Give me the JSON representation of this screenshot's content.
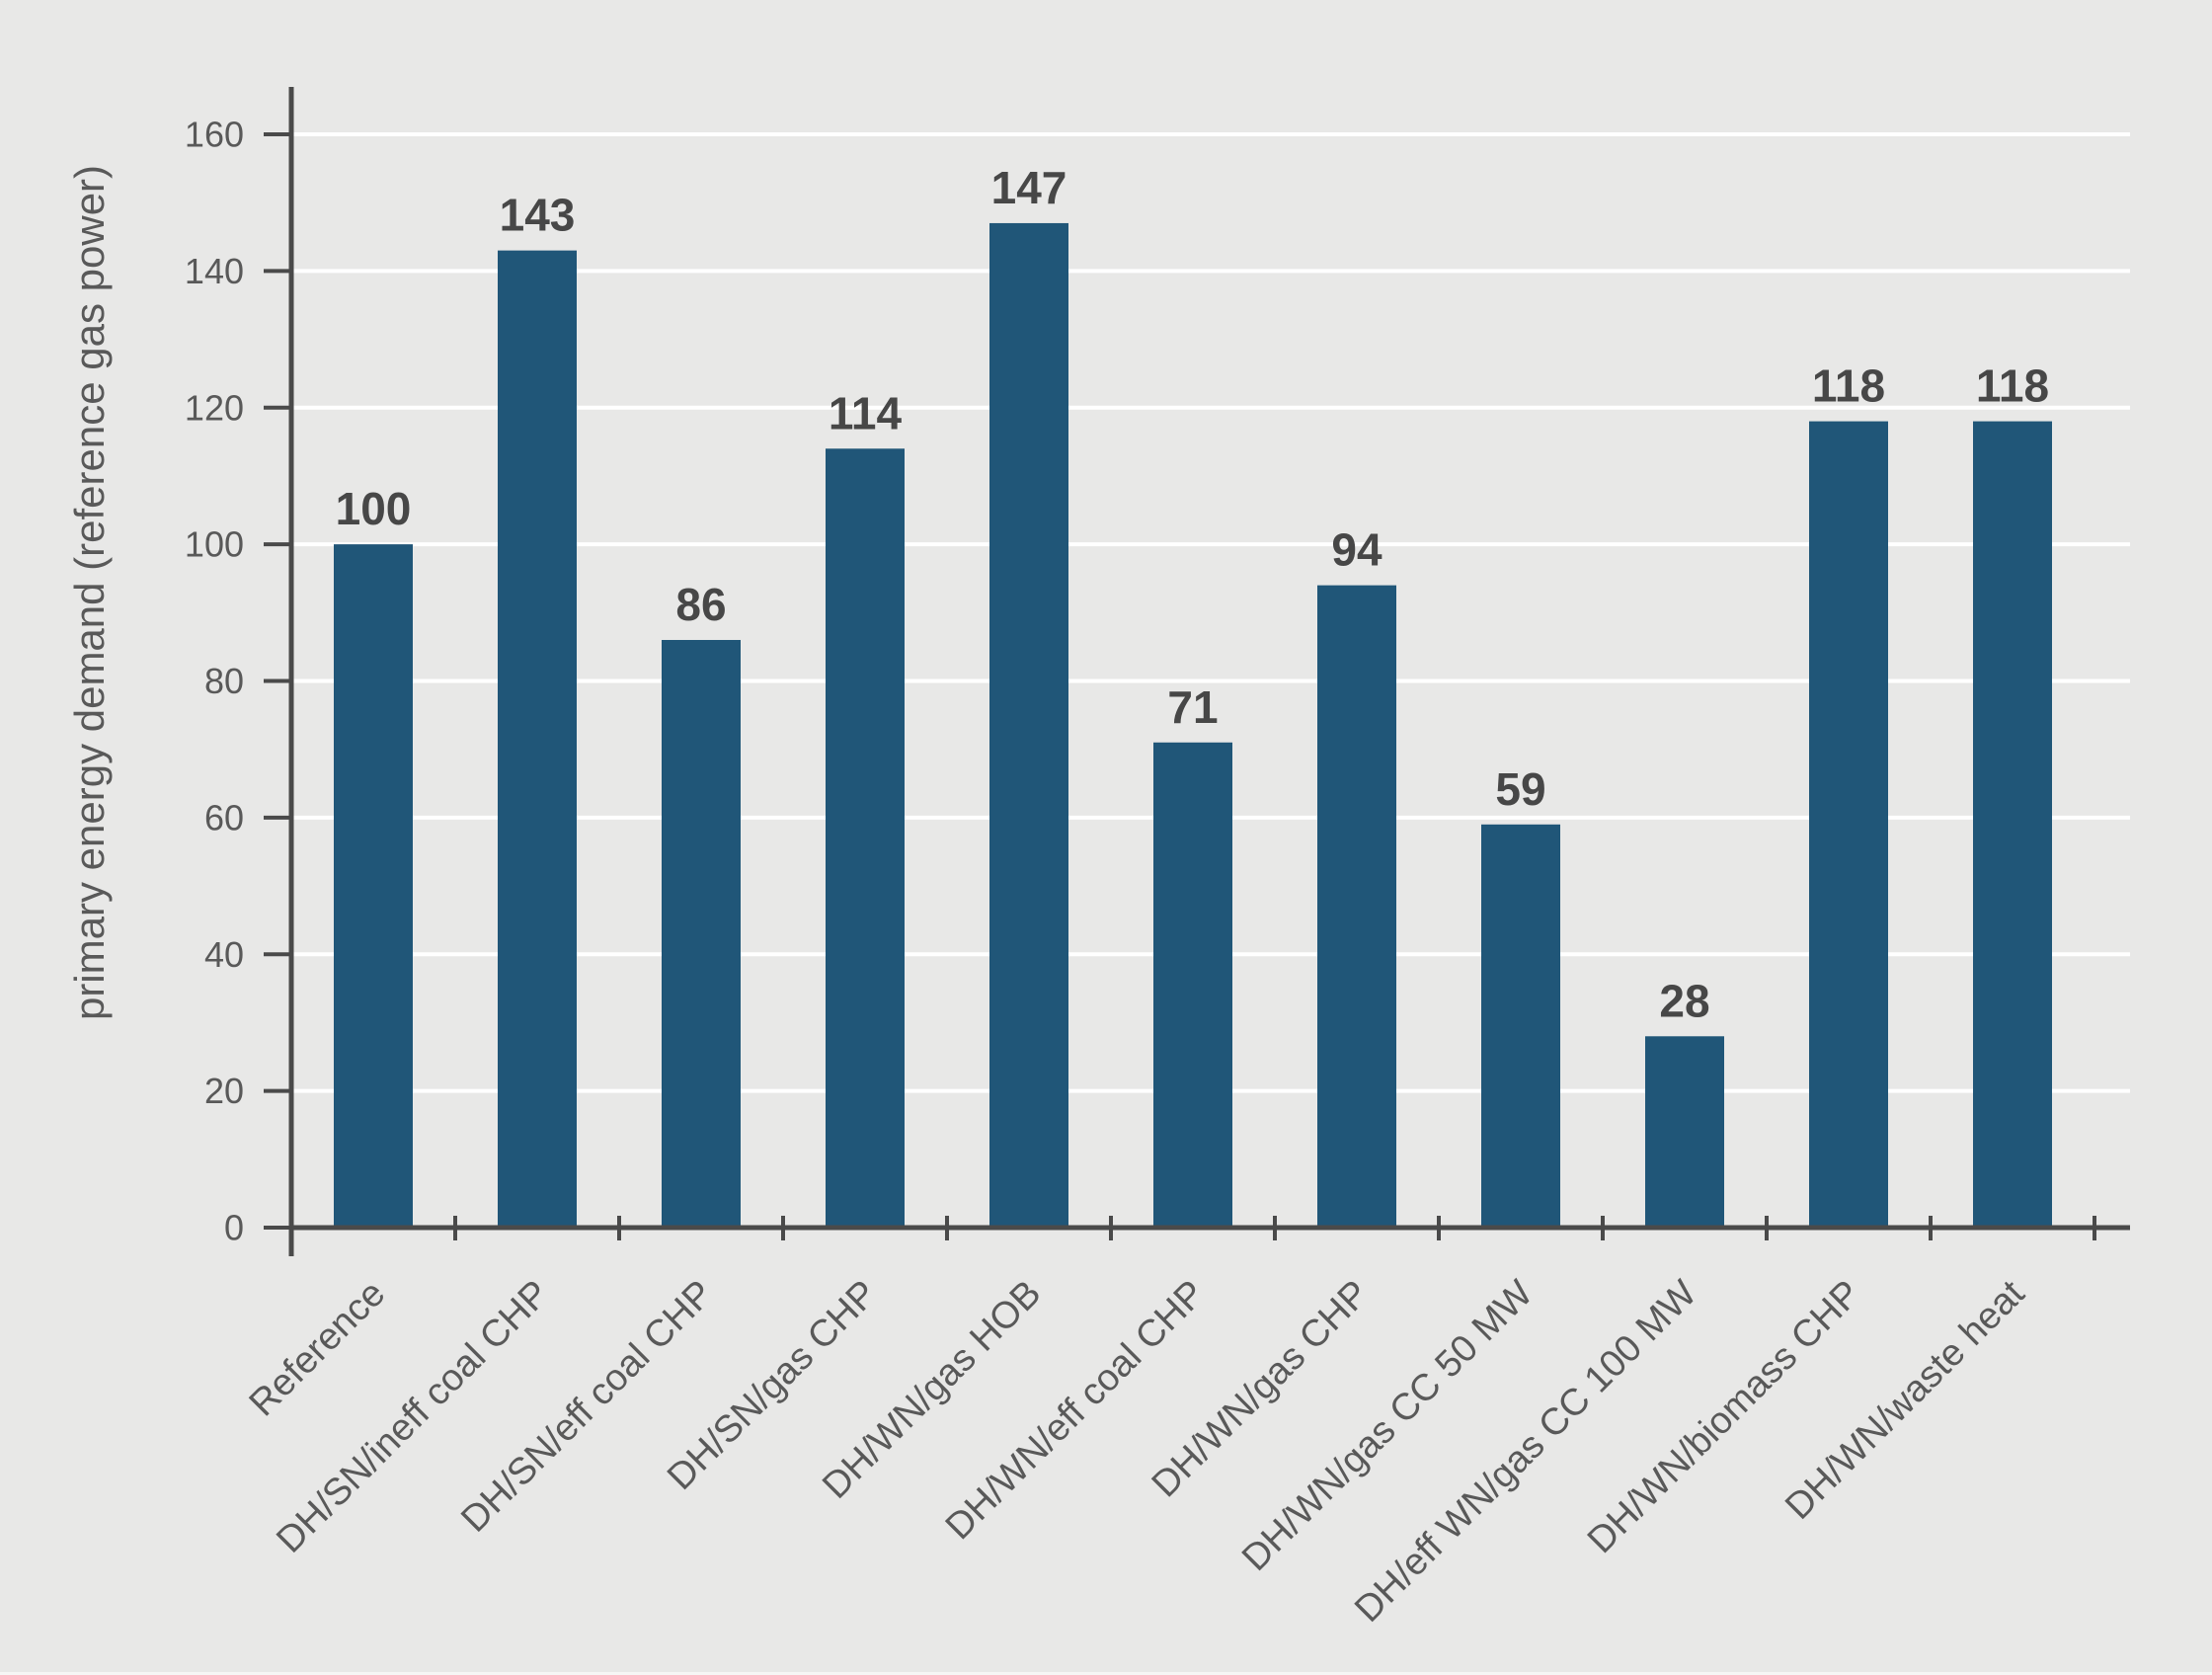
{
  "figure": {
    "background_color": "#e8e8e7"
  },
  "chart_data": {
    "type": "bar",
    "title": "",
    "xlabel": "",
    "ylabel": "primary energy demand (reference gas power)",
    "categories": [
      "Reference",
      "DH/SN/ineff coal CHP",
      "DH/SN/eff coal CHP",
      "DH/SN/gas CHP",
      "DH/WN/gas HOB",
      "DH/WN/eff coal CHP",
      "DH/WN/gas CHP",
      "DH/WN/gas CC 50 MW",
      "DH/eff WN/gas CC 100 MW",
      "DH/WN/biomass CHP",
      "DH/WN/waste heat"
    ],
    "values": [
      100,
      143,
      86,
      114,
      147,
      71,
      94,
      59,
      28,
      118,
      118
    ],
    "bar_value_labels": [
      "100",
      "143",
      "86",
      "114",
      "147",
      "71",
      "94",
      "59",
      "28",
      "118",
      "118"
    ],
    "ylim": [
      0,
      160
    ],
    "yticks": [
      0,
      20,
      40,
      60,
      80,
      100,
      120,
      140,
      160
    ],
    "x_tick_label_rotation_deg": 45,
    "grid": "horizontal",
    "legend": "none",
    "colors": {
      "bar": "#205678",
      "background": "#e8e8e7",
      "gridline": "#ffffff",
      "axis": "#4a4a4a",
      "tick_label": "#595959",
      "value_label": "#474747",
      "axis_title": "#595959"
    }
  }
}
